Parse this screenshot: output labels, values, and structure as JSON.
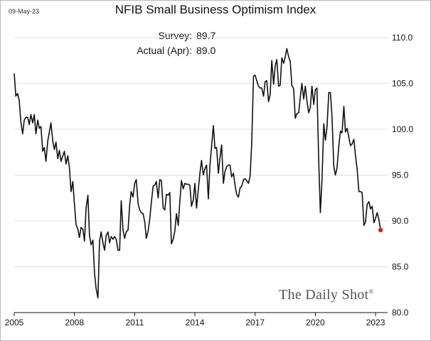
{
  "date_stamp": "09-May-23",
  "watermark": "The Daily Shot",
  "watermark_mark": "®",
  "annotations": [
    {
      "label": "Survey:",
      "value": "89.7"
    },
    {
      "label": "Actual (Apr):",
      "value": "89.0"
    }
  ],
  "colors": {
    "line": "#111111",
    "last_point": "#e02020",
    "grid": "#e0e0e0"
  },
  "chart_data": {
    "type": "line",
    "title": "NFIB Small Business Optimism Index",
    "xlabel": "",
    "ylabel": "",
    "xlim": [
      2005.0,
      2023.6
    ],
    "ylim": [
      80.0,
      111.0
    ],
    "x_ticks": [
      2005,
      2008,
      2011,
      2014,
      2017,
      2020,
      2023
    ],
    "y_ticks": [
      80,
      85,
      90,
      95,
      100,
      105,
      110
    ],
    "y_tick_labels": [
      "80.0",
      "85.0",
      "90.0",
      "95.0",
      "100.0",
      "105.0",
      "110.0"
    ],
    "y_axis_side": "right",
    "grid": "horizontal",
    "series": [
      {
        "name": "NFIB Small Business Optimism Index",
        "x": [
          2005.0,
          2005.08,
          2005.17,
          2005.25,
          2005.33,
          2005.42,
          2005.5,
          2005.58,
          2005.67,
          2005.75,
          2005.83,
          2005.92,
          2006.0,
          2006.08,
          2006.17,
          2006.25,
          2006.33,
          2006.42,
          2006.5,
          2006.58,
          2006.67,
          2006.75,
          2006.83,
          2006.92,
          2007.0,
          2007.08,
          2007.17,
          2007.25,
          2007.33,
          2007.42,
          2007.5,
          2007.58,
          2007.67,
          2007.75,
          2007.83,
          2007.92,
          2008.0,
          2008.08,
          2008.17,
          2008.25,
          2008.33,
          2008.42,
          2008.5,
          2008.58,
          2008.67,
          2008.75,
          2008.83,
          2008.92,
          2009.0,
          2009.08,
          2009.17,
          2009.25,
          2009.33,
          2009.42,
          2009.5,
          2009.58,
          2009.67,
          2009.75,
          2009.83,
          2009.92,
          2010.0,
          2010.08,
          2010.17,
          2010.25,
          2010.33,
          2010.42,
          2010.5,
          2010.58,
          2010.67,
          2010.75,
          2010.83,
          2010.92,
          2011.0,
          2011.08,
          2011.17,
          2011.25,
          2011.33,
          2011.42,
          2011.5,
          2011.58,
          2011.67,
          2011.75,
          2011.83,
          2011.92,
          2012.0,
          2012.08,
          2012.17,
          2012.25,
          2012.33,
          2012.42,
          2012.5,
          2012.58,
          2012.67,
          2012.75,
          2012.83,
          2012.92,
          2013.0,
          2013.08,
          2013.17,
          2013.25,
          2013.33,
          2013.42,
          2013.5,
          2013.58,
          2013.67,
          2013.75,
          2013.83,
          2013.92,
          2014.0,
          2014.08,
          2014.17,
          2014.25,
          2014.33,
          2014.42,
          2014.5,
          2014.58,
          2014.67,
          2014.75,
          2014.83,
          2014.92,
          2015.0,
          2015.08,
          2015.17,
          2015.25,
          2015.33,
          2015.42,
          2015.5,
          2015.58,
          2015.67,
          2015.75,
          2015.83,
          2015.92,
          2016.0,
          2016.08,
          2016.17,
          2016.25,
          2016.33,
          2016.42,
          2016.5,
          2016.58,
          2016.67,
          2016.75,
          2016.83,
          2016.92,
          2017.0,
          2017.08,
          2017.17,
          2017.25,
          2017.33,
          2017.42,
          2017.5,
          2017.58,
          2017.67,
          2017.75,
          2017.83,
          2017.92,
          2018.0,
          2018.08,
          2018.17,
          2018.25,
          2018.33,
          2018.42,
          2018.5,
          2018.58,
          2018.67,
          2018.75,
          2018.83,
          2018.92,
          2019.0,
          2019.08,
          2019.17,
          2019.25,
          2019.33,
          2019.42,
          2019.5,
          2019.58,
          2019.67,
          2019.75,
          2019.83,
          2019.92,
          2020.0,
          2020.08,
          2020.17,
          2020.25,
          2020.33,
          2020.42,
          2020.5,
          2020.58,
          2020.67,
          2020.75,
          2020.83,
          2020.92,
          2021.0,
          2021.08,
          2021.17,
          2021.25,
          2021.33,
          2021.42,
          2021.5,
          2021.58,
          2021.67,
          2021.75,
          2021.83,
          2021.92,
          2022.0,
          2022.08,
          2022.17,
          2022.25,
          2022.33,
          2022.42,
          2022.5,
          2022.58,
          2022.67,
          2022.75,
          2022.83,
          2022.92,
          2023.0,
          2023.08,
          2023.17,
          2023.25
        ],
        "values": [
          106.1,
          103.6,
          103.9,
          103.1,
          100.8,
          99.5,
          101.0,
          101.3,
          101.3,
          100.5,
          101.6,
          100.7,
          101.6,
          99.5,
          101.0,
          100.1,
          100.3,
          97.6,
          98.0,
          96.5,
          98.7,
          99.7,
          100.7,
          98.7,
          97.8,
          98.6,
          96.8,
          97.7,
          96.5,
          97.1,
          97.6,
          96.2,
          97.1,
          95.8,
          93.2,
          94.3,
          91.8,
          89.6,
          89.1,
          88.2,
          89.3,
          89.1,
          87.8,
          91.4,
          92.8,
          88.4,
          87.4,
          87.9,
          84.3,
          82.6,
          81.6,
          87.8,
          88.8,
          87.6,
          86.8,
          88.4,
          88.8,
          87.6,
          88.3,
          88.0,
          88.3,
          88.0,
          86.8,
          86.8,
          92.2,
          89.0,
          88.1,
          88.8,
          89.0,
          91.7,
          93.2,
          92.6,
          94.1,
          94.5,
          91.9,
          91.2,
          90.9,
          90.8,
          89.9,
          88.1,
          88.9,
          90.2,
          92.0,
          93.8,
          93.9,
          94.3,
          92.5,
          94.5,
          94.4,
          91.4,
          91.2,
          92.9,
          92.8,
          93.1,
          87.5,
          88.0,
          88.9,
          90.8,
          89.5,
          92.1,
          94.4,
          93.5,
          94.1,
          94.0,
          94.0,
          93.9,
          91.6,
          92.3,
          94.1,
          91.4,
          93.4,
          95.2,
          96.6,
          95.0,
          95.7,
          96.1,
          92.4,
          96.1,
          98.1,
          100.4,
          97.9,
          98.0,
          95.2,
          96.9,
          98.3,
          94.1,
          95.4,
          95.9,
          96.1,
          96.1,
          94.8,
          95.2,
          93.9,
          92.9,
          92.6,
          93.6,
          93.8,
          94.5,
          94.6,
          94.4,
          94.1,
          94.9,
          98.4,
          105.8,
          105.9,
          105.3,
          104.7,
          104.5,
          104.5,
          103.6,
          105.2,
          105.3,
          103.0,
          103.8,
          107.5,
          104.9,
          106.9,
          107.6,
          104.7,
          104.8,
          107.8,
          107.2,
          107.9,
          108.8,
          107.9,
          107.4,
          104.8,
          104.4,
          101.2,
          101.7,
          101.8,
          103.5,
          105.0,
          103.3,
          104.7,
          103.1,
          101.8,
          102.4,
          104.7,
          102.7,
          104.3,
          104.5,
          96.4,
          90.9,
          94.4,
          100.6,
          98.8,
          100.2,
          104.0,
          104.0,
          101.4,
          95.9,
          95.0,
          95.8,
          98.2,
          99.8,
          99.6,
          102.5,
          99.7,
          100.1,
          99.1,
          98.2,
          98.4,
          98.9,
          97.1,
          95.7,
          93.2,
          93.2,
          93.1,
          89.5,
          89.9,
          91.8,
          92.1,
          91.3,
          91.6,
          89.8,
          90.3,
          90.9,
          90.1,
          89.0
        ]
      }
    ],
    "highlight_point": {
      "x": 2023.25,
      "value": 89.0
    }
  }
}
